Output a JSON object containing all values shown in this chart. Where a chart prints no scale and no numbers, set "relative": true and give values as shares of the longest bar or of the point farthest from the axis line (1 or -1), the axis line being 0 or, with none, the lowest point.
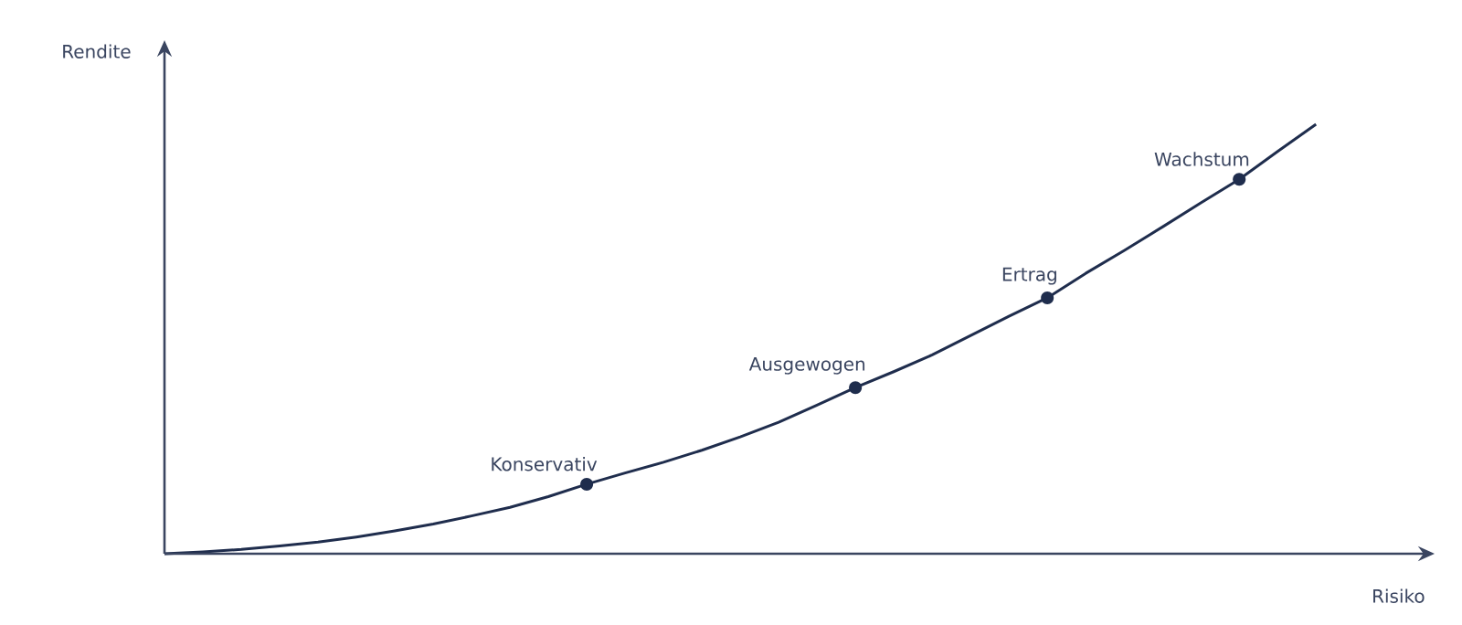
{
  "chart_data": {
    "type": "line",
    "relative": true,
    "xlabel": "Risiko",
    "ylabel": "Rendite",
    "categories": [
      null,
      null,
      null,
      null,
      null,
      null,
      null,
      null,
      null,
      null,
      null,
      null,
      null,
      null,
      null,
      null,
      null,
      null,
      null,
      null,
      null,
      null,
      null,
      null,
      null,
      null,
      null,
      null,
      null,
      null,
      null
    ],
    "series": [
      {
        "color": "#1f2d4d",
        "values": [
          0,
          0.004,
          0.01,
          0.018,
          0.027,
          0.039,
          0.053,
          0.069,
          0.088,
          0.108,
          0.133,
          0.162,
          0.188,
          0.213,
          0.241,
          0.272,
          0.306,
          0.346,
          0.387,
          0.424,
          0.463,
          0.508,
          0.553,
          0.596,
          0.653,
          0.706,
          0.761,
          0.817,
          0.872,
          0.937,
          1
        ]
      }
    ],
    "annotations": [
      "Konservativ",
      "Ausgewogen",
      "Ertrag",
      "Wachstum"
    ]
  }
}
